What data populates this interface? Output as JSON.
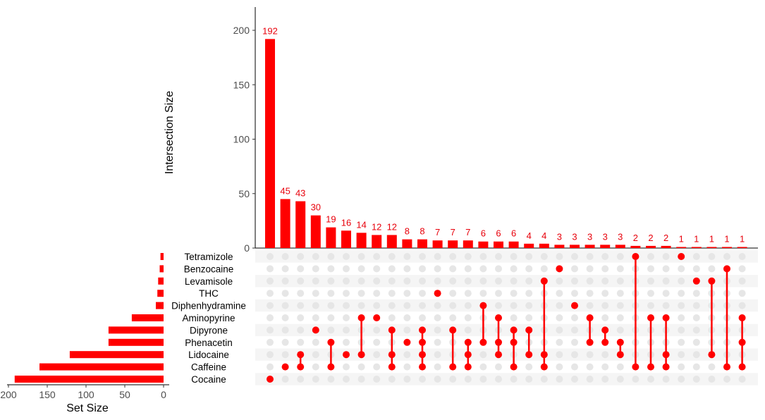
{
  "chart_data": {
    "type": "upset",
    "colors": {
      "bar": "#ff0000",
      "dot_active": "#ff0000",
      "dot_inactive": "#e6e6e6",
      "stripe": "#f5f5f5",
      "label": "#e8000b"
    },
    "intersection_axis": {
      "label": "Intersection Size",
      "ylim": [
        0,
        220
      ],
      "ticks": [
        0,
        50,
        100,
        150,
        200
      ]
    },
    "set_axis": {
      "label": "Set Size",
      "xlim": [
        200,
        0
      ],
      "ticks": [
        200,
        150,
        100,
        50,
        0
      ]
    },
    "sets": [
      {
        "name": "Tetramizole",
        "size": 4
      },
      {
        "name": "Benzocaine",
        "size": 5
      },
      {
        "name": "Levamisole",
        "size": 7
      },
      {
        "name": "THC",
        "size": 8
      },
      {
        "name": "Diphenhydramine",
        "size": 10
      },
      {
        "name": "Aminopyrine",
        "size": 41
      },
      {
        "name": "Dipyrone",
        "size": 71
      },
      {
        "name": "Phenacetin",
        "size": 71
      },
      {
        "name": "Lidocaine",
        "size": 121
      },
      {
        "name": "Caffeine",
        "size": 160
      },
      {
        "name": "Cocaine",
        "size": 192
      }
    ],
    "intersections": [
      {
        "size": 192,
        "sets": [
          "Cocaine"
        ]
      },
      {
        "size": 45,
        "sets": [
          "Caffeine"
        ]
      },
      {
        "size": 43,
        "sets": [
          "Lidocaine",
          "Caffeine"
        ]
      },
      {
        "size": 30,
        "sets": [
          "Dipyrone"
        ]
      },
      {
        "size": 19,
        "sets": [
          "Phenacetin",
          "Caffeine"
        ]
      },
      {
        "size": 16,
        "sets": [
          "Lidocaine"
        ]
      },
      {
        "size": 14,
        "sets": [
          "Aminopyrine",
          "Lidocaine"
        ]
      },
      {
        "size": 12,
        "sets": [
          "Aminopyrine"
        ]
      },
      {
        "size": 12,
        "sets": [
          "Dipyrone",
          "Lidocaine",
          "Caffeine"
        ]
      },
      {
        "size": 8,
        "sets": [
          "Phenacetin"
        ]
      },
      {
        "size": 8,
        "sets": [
          "Dipyrone",
          "Phenacetin",
          "Lidocaine",
          "Caffeine"
        ]
      },
      {
        "size": 7,
        "sets": [
          "THC"
        ]
      },
      {
        "size": 7,
        "sets": [
          "Dipyrone",
          "Caffeine"
        ]
      },
      {
        "size": 7,
        "sets": [
          "Phenacetin",
          "Lidocaine",
          "Caffeine"
        ]
      },
      {
        "size": 6,
        "sets": [
          "Diphenhydramine",
          "Phenacetin"
        ]
      },
      {
        "size": 6,
        "sets": [
          "Aminopyrine",
          "Phenacetin",
          "Lidocaine"
        ]
      },
      {
        "size": 6,
        "sets": [
          "Dipyrone",
          "Phenacetin",
          "Caffeine"
        ]
      },
      {
        "size": 4,
        "sets": [
          "Dipyrone",
          "Lidocaine"
        ]
      },
      {
        "size": 4,
        "sets": [
          "Levamisole",
          "Lidocaine",
          "Caffeine"
        ]
      },
      {
        "size": 3,
        "sets": [
          "Benzocaine"
        ]
      },
      {
        "size": 3,
        "sets": [
          "Diphenhydramine"
        ]
      },
      {
        "size": 3,
        "sets": [
          "Aminopyrine",
          "Phenacetin"
        ]
      },
      {
        "size": 3,
        "sets": [
          "Dipyrone",
          "Phenacetin"
        ]
      },
      {
        "size": 3,
        "sets": [
          "Phenacetin",
          "Lidocaine"
        ]
      },
      {
        "size": 2,
        "sets": [
          "Tetramizole",
          "Caffeine"
        ]
      },
      {
        "size": 2,
        "sets": [
          "Aminopyrine",
          "Caffeine"
        ]
      },
      {
        "size": 2,
        "sets": [
          "Aminopyrine",
          "Lidocaine",
          "Caffeine"
        ]
      },
      {
        "size": 1,
        "sets": [
          "Tetramizole"
        ]
      },
      {
        "size": 1,
        "sets": [
          "Levamisole"
        ]
      },
      {
        "size": 1,
        "sets": [
          "Levamisole",
          "Lidocaine"
        ]
      },
      {
        "size": 1,
        "sets": [
          "Benzocaine",
          "Caffeine"
        ]
      },
      {
        "size": 1,
        "sets": [
          "Aminopyrine",
          "Phenacetin",
          "Caffeine"
        ]
      }
    ]
  }
}
